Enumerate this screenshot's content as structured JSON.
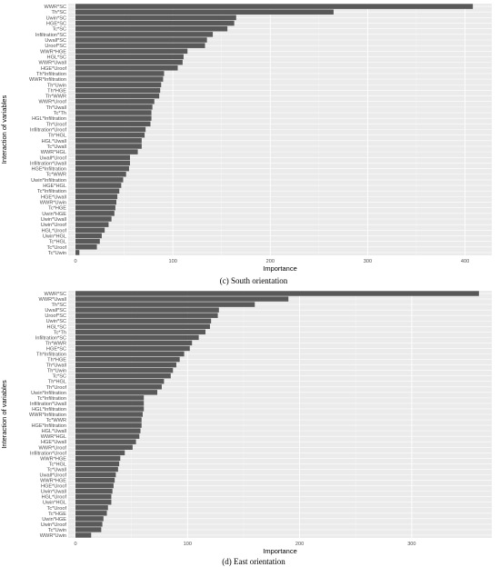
{
  "chart_data": [
    {
      "type": "bar",
      "orientation": "horizontal",
      "caption": "(c) South orientation",
      "xlabel": "Importance",
      "ylabel": "Interaction of variables",
      "xlim": [
        0,
        420
      ],
      "xticks": [
        0,
        100,
        200,
        300,
        400
      ],
      "categories": [
        "WWR*SC",
        "Th*SC",
        "Uwin*SC",
        "HGE*SC",
        "Tc*SC",
        "Infiltration*SC",
        "Uwall*SC",
        "Uroof*SC",
        "WWR*HGE",
        "HGL*SC",
        "WWR*Uwall",
        "HGE*Uroof",
        "Th*Infiltration",
        "WWR*Infiltration",
        "Th*Uwin",
        "Th*HGE",
        "Th*WWR",
        "WWR*Uroof",
        "Th*Uwall",
        "Tc*Th",
        "HGL*Infiltration",
        "Th*Uroof",
        "Infiltration*Uroof",
        "Th*HGL",
        "HGL*Uwall",
        "Tc*Uwall",
        "WWR*HGL",
        "Uwall*Uroof",
        "Infiltration*Uwall",
        "HGE*Infiltration",
        "Tc*WWR",
        "Uwin*Infiltration",
        "HGE*HGL",
        "Tc*Infiltration",
        "HGE*Uwall",
        "WWR*Uwin",
        "Tc*HGE",
        "Uwin*HGE",
        "Uwin*Uwall",
        "Uwin*Uroof",
        "HGL*Uroof",
        "Uwin*HGL",
        "Tc*HGL",
        "Tc*Uroof",
        "Tc*Uwin"
      ],
      "values": [
        408,
        265,
        165,
        163,
        156,
        141,
        135,
        133,
        115,
        111,
        110,
        105,
        91,
        90,
        88,
        87,
        86,
        81,
        79,
        78,
        78,
        77,
        72,
        71,
        68,
        68,
        64,
        56,
        56,
        55,
        52,
        49,
        47,
        45,
        43,
        42,
        41,
        40,
        37,
        34,
        30,
        27,
        25,
        22,
        4
      ]
    },
    {
      "type": "bar",
      "orientation": "horizontal",
      "caption": "(d) East orientation",
      "xlabel": "Importance",
      "ylabel": "Interaction of variables",
      "xlim": [
        0,
        365
      ],
      "xticks": [
        0,
        100,
        200,
        300
      ],
      "categories": [
        "WWR*SC",
        "WWR*Uwall",
        "Th*SC",
        "Uwall*SC",
        "Uroof*SC",
        "Uwin*SC",
        "HGL*SC",
        "Tc*Th",
        "Infiltration*SC",
        "Th*WWR",
        "HGE*SC",
        "Th*Infiltration",
        "Th*HGE",
        "Th*Uwall",
        "Th*Uwin",
        "Tc*SC",
        "Th*HGL",
        "Th*Uroof",
        "Uwin*Infiltration",
        "Tc*Infiltration",
        "Infiltration*Uwall",
        "HGL*Infiltration",
        "WWR*Infiltration",
        "Tc*WWR",
        "HGE*Infiltration",
        "HGL*Uwall",
        "WWR*HGL",
        "HGE*Uwall",
        "WWR*Uroof",
        "Infiltration*Uroof",
        "WWR*HGE",
        "Tc*HGL",
        "Tc*Uwall",
        "Uwall*Uroof",
        "WWR*HGE",
        "HGE*Uroof",
        "Uwin*Uwall",
        "HGL*Uroof",
        "Uwin*HGL",
        "Tc*Uroof",
        "Tc*HGE",
        "Uwin*HGE",
        "Uwin*Uroof",
        "Tc*Uwin",
        "WWR*Uwin"
      ],
      "values": [
        360,
        190,
        160,
        128,
        127,
        121,
        120,
        116,
        110,
        104,
        102,
        97,
        93,
        90,
        87,
        85,
        79,
        77,
        73,
        61,
        61,
        61,
        60,
        59,
        59,
        58,
        57,
        54,
        51,
        44,
        40,
        39,
        38,
        36,
        35,
        34,
        33,
        32,
        32,
        29,
        28,
        25,
        24,
        23,
        14
      ]
    }
  ]
}
